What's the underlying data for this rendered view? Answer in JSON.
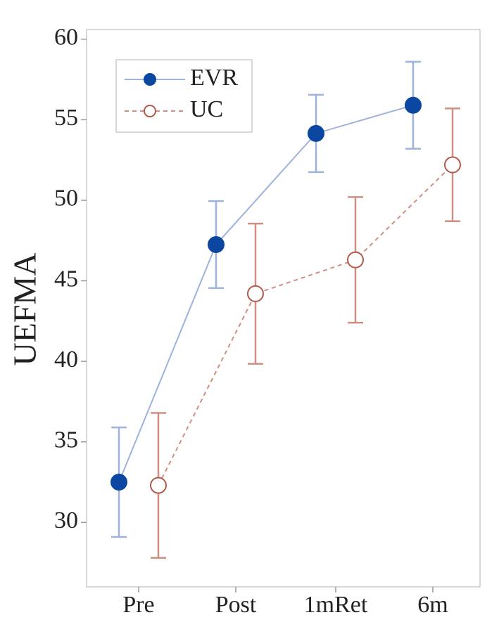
{
  "chart_data": {
    "type": "line",
    "y_label": "UEFMA",
    "categories": [
      "Pre",
      "Post",
      "1mRet",
      "6m"
    ],
    "series": [
      {
        "name": "EVR",
        "color": "#0b47a0",
        "line_color": "#9fb2dc",
        "marker": "filled",
        "dash": false,
        "values": [
          32.5,
          47.25,
          54.15,
          55.9
        ],
        "errors": [
          3.4,
          2.7,
          2.4,
          2.7
        ]
      },
      {
        "name": "UC",
        "color": "#b5584a",
        "line_color": "#cf8f82",
        "marker": "open",
        "dash": true,
        "values": [
          32.3,
          44.2,
          46.3,
          52.2
        ],
        "errors": [
          4.5,
          4.35,
          3.9,
          3.5
        ]
      }
    ],
    "ylim": [
      26,
      60.6
    ],
    "yticks": [
      30,
      35,
      40,
      45,
      50,
      55,
      60
    ],
    "legend": "top-left",
    "grid": false
  }
}
